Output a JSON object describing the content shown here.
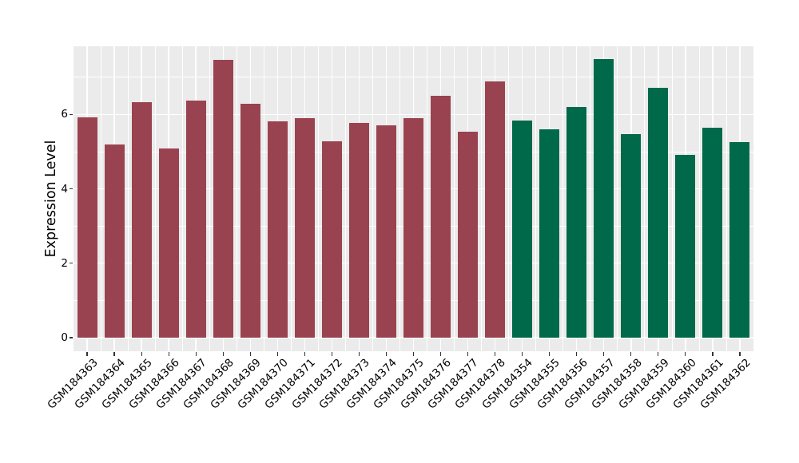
{
  "chart_data": {
    "type": "bar",
    "title": "",
    "xlabel": "",
    "ylabel": "Expression Level",
    "legend_position": "none",
    "grid": "white major and minor gridlines on grey panel",
    "yticks": [
      0,
      2,
      4,
      6
    ],
    "yticks_minor": [
      1,
      3,
      5,
      7
    ],
    "ylim_display": [
      -0.37,
      7.84
    ],
    "palette": {
      "maroon": "#9A4350",
      "green": "#00694A"
    },
    "bars": [
      {
        "label": "GSM184363",
        "value": 5.92,
        "group": "maroon"
      },
      {
        "label": "GSM184364",
        "value": 5.19,
        "group": "maroon"
      },
      {
        "label": "GSM184365",
        "value": 6.33,
        "group": "maroon"
      },
      {
        "label": "GSM184366",
        "value": 5.08,
        "group": "maroon"
      },
      {
        "label": "GSM184367",
        "value": 6.37,
        "group": "maroon"
      },
      {
        "label": "GSM184368",
        "value": 7.47,
        "group": "maroon"
      },
      {
        "label": "GSM184369",
        "value": 6.29,
        "group": "maroon"
      },
      {
        "label": "GSM184370",
        "value": 5.82,
        "group": "maroon"
      },
      {
        "label": "GSM184371",
        "value": 5.9,
        "group": "maroon"
      },
      {
        "label": "GSM184372",
        "value": 5.28,
        "group": "maroon"
      },
      {
        "label": "GSM184373",
        "value": 5.77,
        "group": "maroon"
      },
      {
        "label": "GSM184374",
        "value": 5.71,
        "group": "maroon"
      },
      {
        "label": "GSM184375",
        "value": 5.9,
        "group": "maroon"
      },
      {
        "label": "GSM184376",
        "value": 6.5,
        "group": "maroon"
      },
      {
        "label": "GSM184377",
        "value": 5.54,
        "group": "maroon"
      },
      {
        "label": "GSM184378",
        "value": 6.88,
        "group": "maroon"
      },
      {
        "label": "GSM184354",
        "value": 5.84,
        "group": "green"
      },
      {
        "label": "GSM184355",
        "value": 5.6,
        "group": "green"
      },
      {
        "label": "GSM184356",
        "value": 6.2,
        "group": "green"
      },
      {
        "label": "GSM184357",
        "value": 7.49,
        "group": "green"
      },
      {
        "label": "GSM184358",
        "value": 5.47,
        "group": "green"
      },
      {
        "label": "GSM184359",
        "value": 6.72,
        "group": "green"
      },
      {
        "label": "GSM184360",
        "value": 4.92,
        "group": "green"
      },
      {
        "label": "GSM184361",
        "value": 5.65,
        "group": "green"
      },
      {
        "label": "GSM184362",
        "value": 5.26,
        "group": "green"
      }
    ]
  },
  "colors": {
    "figure_background": "#FFFFFF",
    "panel_background": "#EBEBEB",
    "gridline": "#FFFFFF",
    "axis_text": "#000000",
    "tick_mark": "#333333"
  }
}
